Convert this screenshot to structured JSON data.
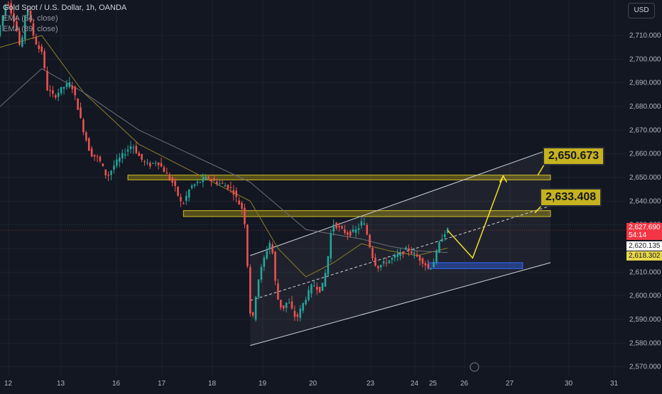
{
  "legend": {
    "symbol": "Gold Spot / U.S. Dollar, 1h, OANDA",
    "ema1": "EMA (34, close)",
    "ema2": "EMA (89, close)"
  },
  "currency_button": "USD",
  "price_tags": {
    "last_price": "2,627.690",
    "countdown": "54:14",
    "ema34_value": "2,620.135",
    "ema89_value": "2,618.302"
  },
  "annotations": {
    "target_upper": "2,650.673",
    "target_lower": "2,633.408"
  },
  "colors": {
    "background": "#131722",
    "up_candle": "#26a69a",
    "down_candle": "#ef5350",
    "zone_fill": "#8a7a16",
    "zone_border": "#d4c020",
    "support_zone": "#1e3a8a",
    "callout_bg": "#c6b21e",
    "arrow": "#f2e22a",
    "ema34": "#8c7f2a",
    "ema89": "#6b6f7a"
  },
  "chart_data": {
    "type": "candlestick",
    "title": "Gold Spot / U.S. Dollar, 1h, OANDA",
    "y_axis": {
      "ticks": [
        2570,
        2580,
        2590,
        2600,
        2610,
        2620,
        2630,
        2640,
        2650,
        2660,
        2670,
        2680,
        2690,
        2700,
        2710
      ],
      "tick_labels": [
        "2,570.000",
        "2,580.000",
        "2,590.000",
        "2,600.000",
        "2,610.000",
        "2,620.000",
        "2,630.000",
        "2,640.000",
        "2,650.000",
        "2,660.000",
        "2,670.000",
        "2,680.000",
        "2,690.000",
        "2,700.000",
        "2,710.000"
      ],
      "range": [
        2566,
        2725
      ]
    },
    "x_axis": {
      "tick_labels": [
        "12",
        "13",
        "16",
        "17",
        "18",
        "19",
        "20",
        "23",
        "24",
        "25",
        "26",
        "27",
        "30",
        "31"
      ],
      "last_price_bar": 161
    },
    "price_path": [
      [
        0,
        2712
      ],
      [
        3,
        2725
      ],
      [
        6,
        2715
      ],
      [
        8,
        2703
      ],
      [
        10,
        2724
      ],
      [
        12,
        2712
      ],
      [
        14,
        2705
      ],
      [
        16,
        2703
      ],
      [
        17,
        2688
      ],
      [
        20,
        2684
      ],
      [
        23,
        2688
      ],
      [
        26,
        2690
      ],
      [
        28,
        2682
      ],
      [
        30,
        2672
      ],
      [
        33,
        2660
      ],
      [
        36,
        2658
      ],
      [
        39,
        2650
      ],
      [
        42,
        2656
      ],
      [
        45,
        2660
      ],
      [
        48,
        2664
      ],
      [
        51,
        2658
      ],
      [
        54,
        2655
      ],
      [
        57,
        2657
      ],
      [
        60,
        2652
      ],
      [
        63,
        2647
      ],
      [
        66,
        2638
      ],
      [
        69,
        2646
      ],
      [
        72,
        2648
      ],
      [
        75,
        2650
      ],
      [
        78,
        2648
      ],
      [
        81,
        2647
      ],
      [
        84,
        2645
      ],
      [
        86,
        2640
      ],
      [
        88,
        2636
      ],
      [
        89,
        2626
      ],
      [
        90,
        2600
      ],
      [
        91,
        2586
      ],
      [
        93,
        2605
      ],
      [
        96,
        2618
      ],
      [
        98,
        2624
      ],
      [
        100,
        2600
      ],
      [
        102,
        2594
      ],
      [
        104,
        2598
      ],
      [
        107,
        2590
      ],
      [
        110,
        2598
      ],
      [
        113,
        2605
      ],
      [
        116,
        2602
      ],
      [
        118,
        2612
      ],
      [
        120,
        2631
      ],
      [
        123,
        2628
      ],
      [
        126,
        2626
      ],
      [
        129,
        2628
      ],
      [
        131,
        2632
      ],
      [
        133,
        2624
      ],
      [
        134,
        2618
      ],
      [
        136,
        2612
      ],
      [
        139,
        2614
      ],
      [
        142,
        2616
      ],
      [
        145,
        2618
      ],
      [
        147,
        2620
      ],
      [
        150,
        2617
      ],
      [
        153,
        2614
      ],
      [
        155,
        2611
      ],
      [
        157,
        2616
      ],
      [
        159,
        2624
      ],
      [
        161,
        2627.69
      ]
    ],
    "ema34": [
      [
        0,
        2705
      ],
      [
        15,
        2710
      ],
      [
        30,
        2686
      ],
      [
        50,
        2664
      ],
      [
        70,
        2652
      ],
      [
        90,
        2640
      ],
      [
        100,
        2620
      ],
      [
        110,
        2608
      ],
      [
        120,
        2614
      ],
      [
        130,
        2622
      ],
      [
        140,
        2619
      ],
      [
        150,
        2617
      ],
      [
        161,
        2620.135
      ]
    ],
    "ema89": [
      [
        0,
        2680
      ],
      [
        15,
        2696
      ],
      [
        30,
        2686
      ],
      [
        50,
        2670
      ],
      [
        70,
        2659
      ],
      [
        90,
        2648
      ],
      [
        100,
        2638
      ],
      [
        110,
        2628
      ],
      [
        120,
        2626
      ],
      [
        130,
        2624
      ],
      [
        140,
        2621
      ],
      [
        150,
        2619
      ],
      [
        161,
        2618.302
      ]
    ],
    "channel": {
      "lower": [
        [
          90,
          2579
        ],
        [
          198,
          2614
        ]
      ],
      "upper": [
        [
          90,
          2617
        ],
        [
          198,
          2662
        ]
      ],
      "mid": [
        [
          90,
          2598
        ],
        [
          198,
          2638
        ]
      ]
    },
    "zones": [
      {
        "from_bar": 46,
        "to_bar": 198,
        "y_low": 2649,
        "y_high": 2651
      },
      {
        "from_bar": 66,
        "to_bar": 198,
        "y_low": 2633.5,
        "y_high": 2636
      },
      {
        "from_bar": 154,
        "to_bar": 188,
        "y_low": 2611.5,
        "y_high": 2614
      }
    ],
    "projection_path": [
      [
        161,
        2627.69
      ],
      [
        170,
        2616
      ],
      [
        181,
        2650.673
      ]
    ],
    "horizontal_levels": [
      2627.69,
      2620.135,
      2618.302
    ]
  }
}
